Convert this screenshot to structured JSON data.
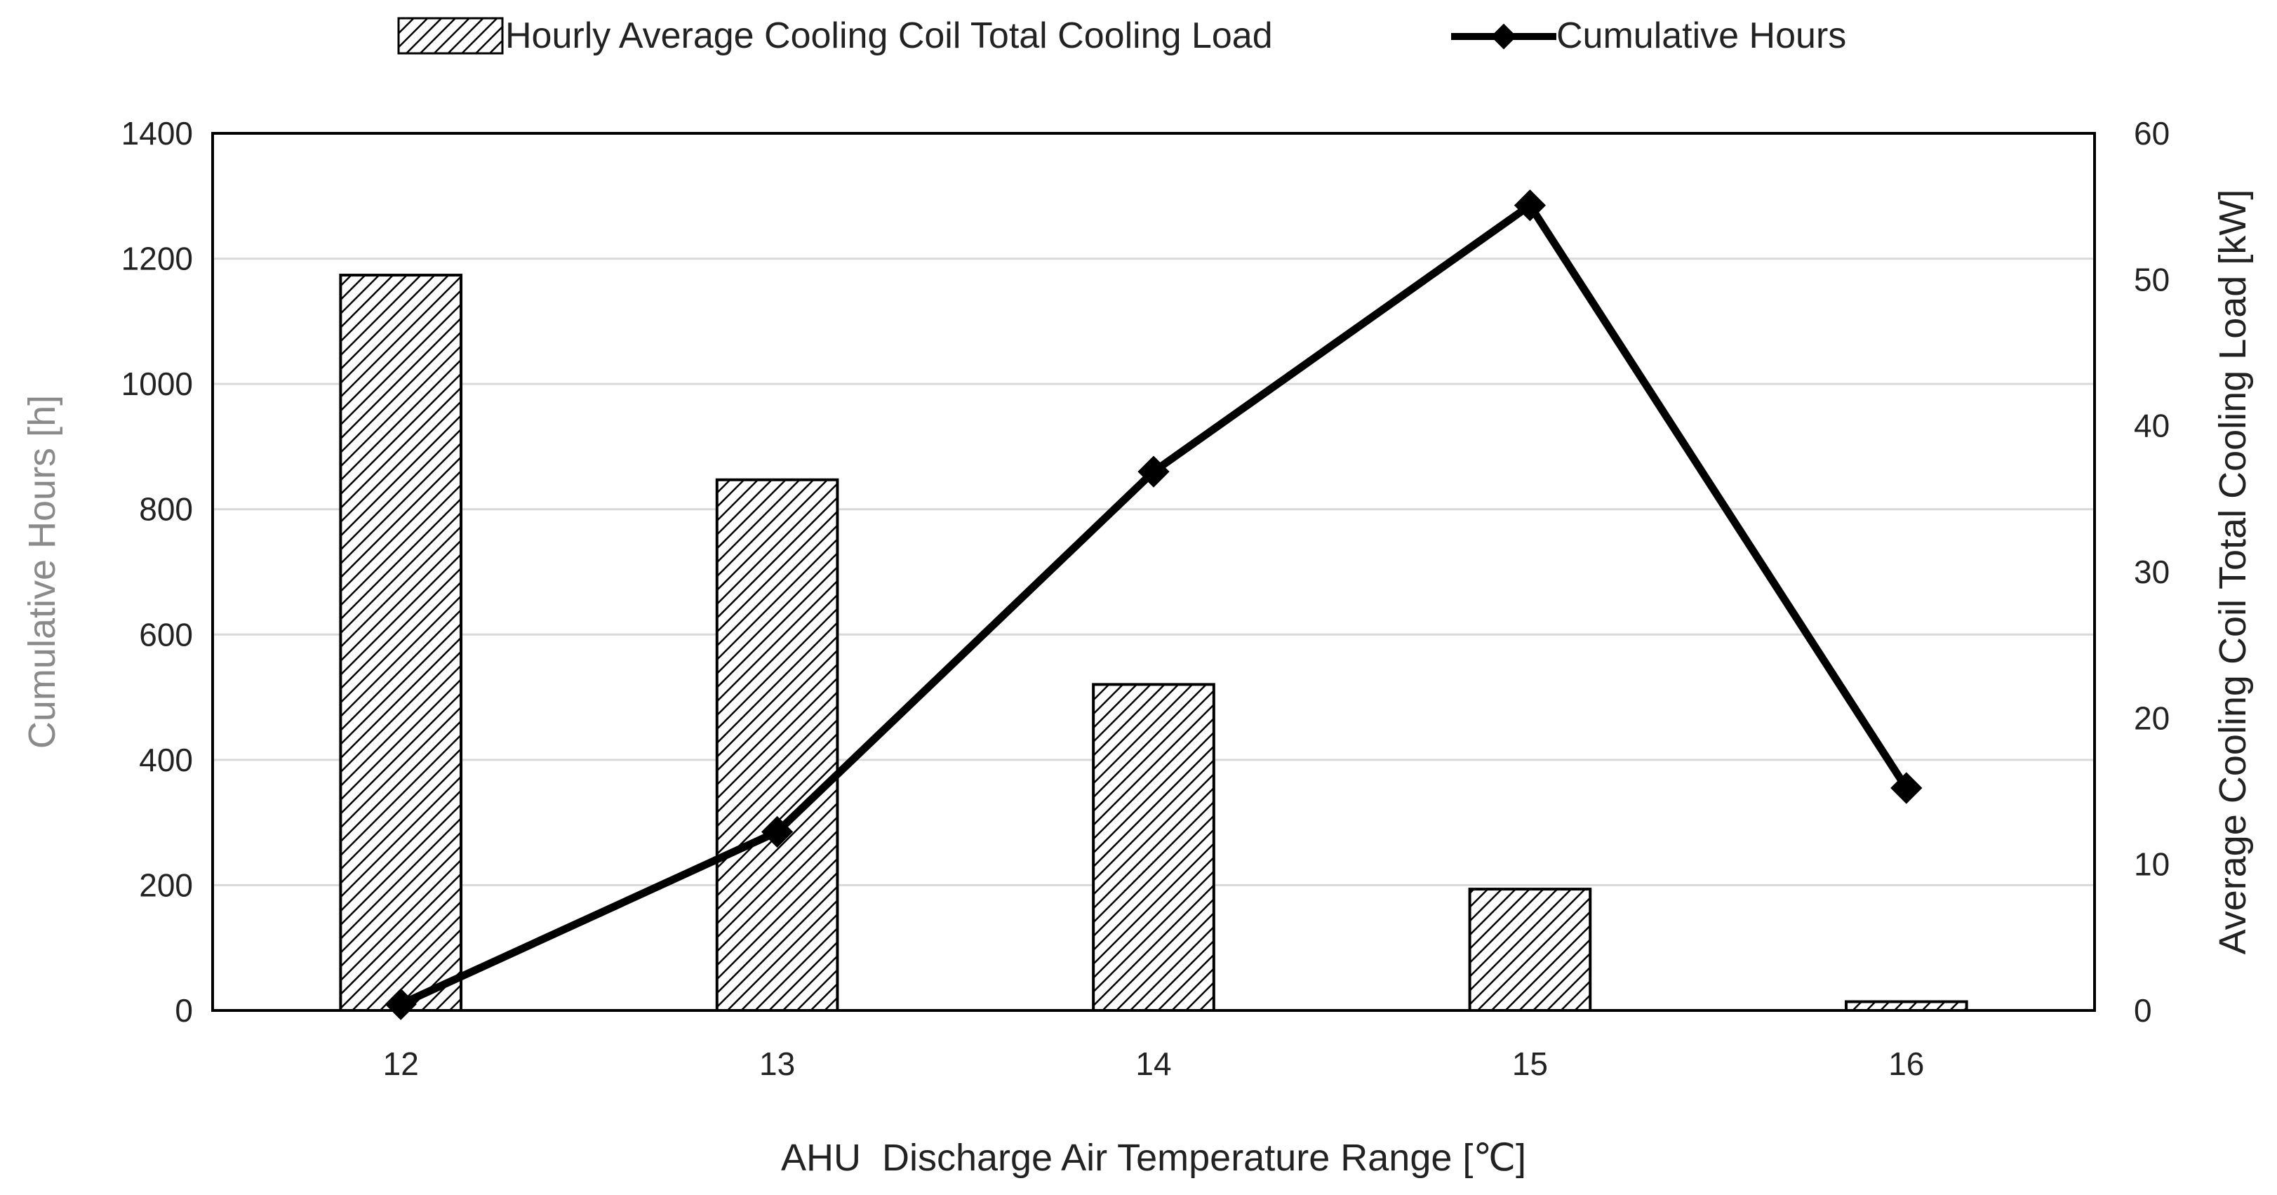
{
  "chart_data": {
    "type": "bar+line",
    "title": "",
    "categories": [
      "12",
      "13",
      "14",
      "15",
      "16"
    ],
    "xlabel": "AHU  Discharge Air Temperature Range [℃]",
    "ylabel_left": "Cumulative Hours [h]",
    "ylabel_right": "Average Cooling Coil Total Cooling Load [kW]",
    "ylim_left": [
      0,
      1400
    ],
    "ylim_right": [
      0,
      60
    ],
    "yticks_left": [
      "0",
      "200",
      "400",
      "600",
      "800",
      "1000",
      "1200",
      "1400"
    ],
    "yticks_right": [
      "0",
      "10",
      "20",
      "30",
      "40",
      "50",
      "60"
    ],
    "grid": true,
    "legend_position": "top",
    "series": [
      {
        "name": "Hourly Average Cooling Coil Total Cooling Load",
        "kind": "bar",
        "axis": "right",
        "pattern": "diagonal-hatch",
        "values": [
          50.3,
          36.3,
          22.3,
          8.3,
          0.6
        ]
      },
      {
        "name": "Cumulative Hours",
        "kind": "line",
        "axis": "left",
        "marker": "diamond",
        "values": [
          10,
          285,
          860,
          1285,
          355
        ]
      }
    ],
    "colors": {
      "line": "#000000",
      "bar_fill": "#ffffff",
      "bar_hatch": "#000000",
      "grid": "#d9d9d9",
      "frame": "#000000"
    }
  }
}
